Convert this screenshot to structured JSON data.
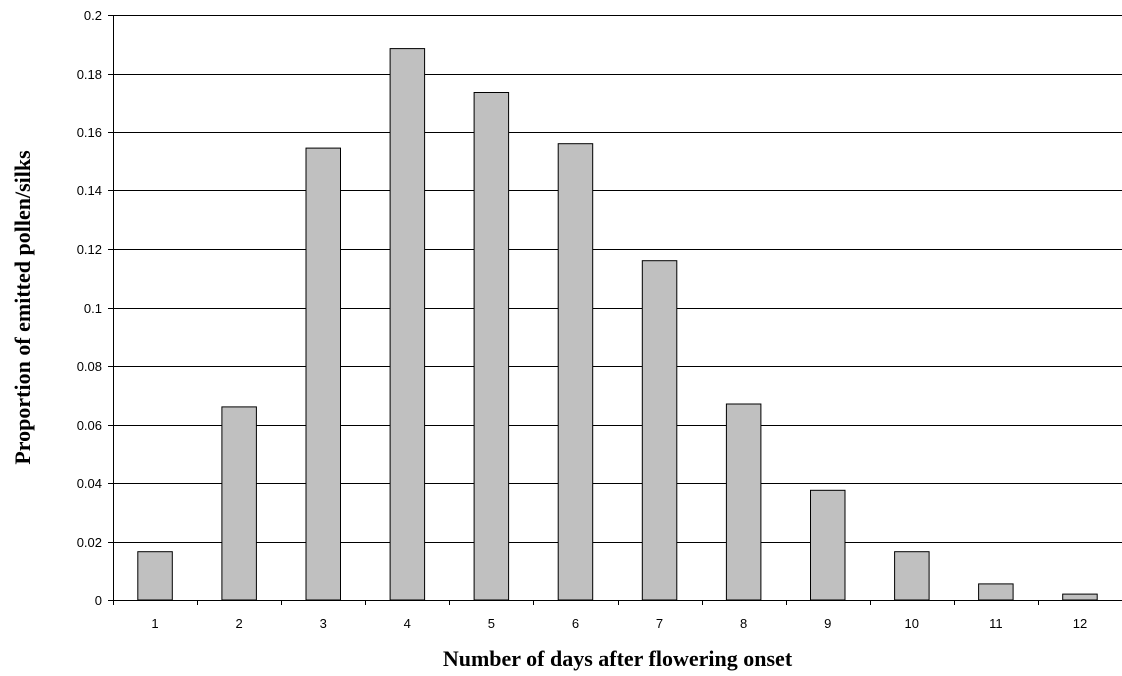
{
  "chart_data": {
    "type": "bar",
    "title": "",
    "xlabel": "Number of days after flowering onset",
    "ylabel": "Proportion of emitted pollen/silks",
    "categories": [
      "1",
      "2",
      "3",
      "4",
      "5",
      "6",
      "7",
      "8",
      "9",
      "10",
      "11",
      "12"
    ],
    "values": [
      0.0165,
      0.066,
      0.1545,
      0.1885,
      0.1735,
      0.156,
      0.116,
      0.067,
      0.0375,
      0.0165,
      0.0055,
      0.002
    ],
    "ylim": [
      0,
      0.2
    ],
    "yticks": [
      "0",
      "0.02",
      "0.04",
      "0.06",
      "0.08",
      "0.1",
      "0.12",
      "0.14",
      "0.16",
      "0.18",
      "0.2"
    ],
    "grid": true,
    "legend": "none",
    "colors": {
      "bar": "#c0c0c0",
      "outline": "#000000"
    }
  }
}
